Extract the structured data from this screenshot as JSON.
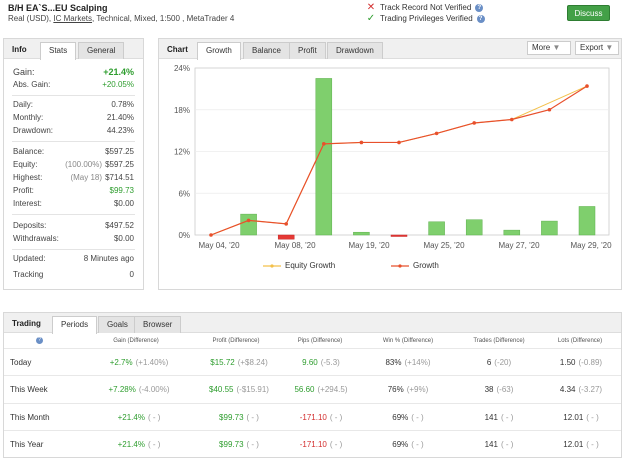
{
  "header": {
    "title": "B/H EA`S...EU Scalping",
    "sub_prefix": "Real (USD),",
    "broker": "IC Markets",
    "sub_suffix": ", Technical, Mixed, 1:500 , MetaTrader 4",
    "track_record": "Track Record Not Verified",
    "trading_privileges": "Trading Privileges Verified",
    "discuss": "Discuss"
  },
  "info": {
    "tab_info": "Info",
    "tab_stats": "Stats",
    "tab_general": "General",
    "gain_label": "Gain:",
    "gain_value": "+21.4%",
    "abs_gain_label": "Abs. Gain:",
    "abs_gain_value": "+20.05%",
    "daily_label": "Daily:",
    "daily_value": "0.78%",
    "monthly_label": "Monthly:",
    "monthly_value": "21.40%",
    "drawdown_label": "Drawdown:",
    "drawdown_value": "44.23%",
    "balance_label": "Balance:",
    "balance_value": "$597.25",
    "equity_label": "Equity:",
    "equity_note": "(100.00%)",
    "equity_value": "$597.25",
    "highest_label": "Highest:",
    "highest_note": "(May 18)",
    "highest_value": "$714.51",
    "profit_label": "Profit:",
    "profit_value": "$99.73",
    "interest_label": "Interest:",
    "interest_value": "$0.00",
    "deposits_label": "Deposits:",
    "deposits_value": "$497.52",
    "withdrawals_label": "Withdrawals:",
    "withdrawals_value": "$0.00",
    "updated_label": "Updated:",
    "updated_value": "8 Minutes ago",
    "tracking_label": "Tracking",
    "tracking_value": "0"
  },
  "chart_panel": {
    "tab_chart": "Chart",
    "tab_growth": "Growth",
    "tab_balance": "Balance",
    "tab_profit": "Profit",
    "tab_drawdown": "Drawdown",
    "more": "More",
    "export": "Export",
    "legend_equity": "Equity Growth",
    "legend_growth": "Growth"
  },
  "chart_data": {
    "type": "line",
    "y_ticks": [
      "24%",
      "18%",
      "12%",
      "6%",
      "0%"
    ],
    "x_ticks": [
      "May 04, '20",
      "May 08, '20",
      "May 19, '20",
      "May 25, '20",
      "May 27, '20",
      "May 29, '20"
    ],
    "ylim": [
      0,
      24
    ],
    "growth": [
      0,
      2.1,
      1.6,
      13.1,
      13.3,
      13.3,
      14.6,
      16.1,
      16.6,
      18.0,
      21.4
    ],
    "equity_growth": [
      0,
      2.1,
      1.6,
      13.1,
      13.3,
      13.3,
      14.6,
      16.1,
      16.6,
      19.0,
      21.4
    ],
    "bars": [
      0,
      3.0,
      -0.6,
      22.5,
      0.4,
      -0.2,
      1.9,
      2.2,
      0.7,
      2.0,
      4.1
    ],
    "colors": {
      "growth": "#e8502c",
      "equity": "#f3c04a",
      "bar_pos": "#7fcf6d",
      "bar_neg": "#e53935"
    }
  },
  "trading": {
    "tab_trading": "Trading",
    "tab_periods": "Periods",
    "tab_goals": "Goals",
    "tab_browser": "Browser",
    "headers": [
      "Gain (Difference)",
      "Profit (Difference)",
      "Pips (Difference)",
      "Win % (Difference)",
      "Trades (Difference)",
      "Lots (Difference)"
    ],
    "rows": [
      {
        "period": "Today",
        "gain": "+2.7%",
        "gain_d": "(+1.40%)",
        "profit": "$15.72",
        "profit_d": "(+$8.24)",
        "pips": "9.60",
        "pips_d": "(-5.3)",
        "win": "83%",
        "win_d": "(+14%)",
        "trades": "6",
        "trades_d": "(-20)",
        "lots": "1.50",
        "lots_d": "(-0.89)"
      },
      {
        "period": "This Week",
        "gain": "+7.28%",
        "gain_d": "(-4.00%)",
        "profit": "$40.55",
        "profit_d": "(-$15.91)",
        "pips": "56.60",
        "pips_d": "(+294.5)",
        "win": "76%",
        "win_d": "(+9%)",
        "trades": "38",
        "trades_d": "(-63)",
        "lots": "4.34",
        "lots_d": "(-3.27)"
      },
      {
        "period": "This Month",
        "gain": "+21.4%",
        "gain_d": "( - )",
        "profit": "$99.73",
        "profit_d": "( - )",
        "pips": "-171.10",
        "pips_d": "( - )",
        "win": "69%",
        "win_d": "( - )",
        "trades": "141",
        "trades_d": "( - )",
        "lots": "12.01",
        "lots_d": "( - )"
      },
      {
        "period": "This Year",
        "gain": "+21.4%",
        "gain_d": "( - )",
        "profit": "$99.73",
        "profit_d": "( - )",
        "pips": "-171.10",
        "pips_d": "( - )",
        "win": "69%",
        "win_d": "( - )",
        "trades": "141",
        "trades_d": "( - )",
        "lots": "12.01",
        "lots_d": "( - )"
      }
    ]
  }
}
